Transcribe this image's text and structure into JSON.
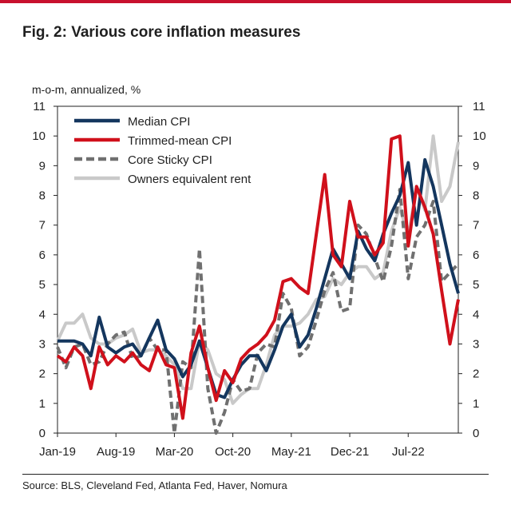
{
  "title": "Fig. 2: Various core inflation measures",
  "source": "Source: BLS, Cleveland Fed, Atlanta Fed, Haver, Nomura",
  "colors": {
    "accent": "#c8102e",
    "median": "#14365e",
    "trimmed": "#d0101b",
    "sticky": "#707070",
    "oer": "#c9c9c9"
  },
  "chart_data": {
    "type": "line",
    "ylabel": "m-o-m, annualized, %",
    "ylim": [
      0,
      11
    ],
    "yticks": [
      "0",
      "1",
      "2",
      "3",
      "4",
      "5",
      "6",
      "7",
      "8",
      "9",
      "10",
      "11"
    ],
    "xlim": [
      0,
      48
    ],
    "xticks": [
      {
        "label": "Jan-19",
        "x": 0
      },
      {
        "label": "Aug-19",
        "x": 7
      },
      {
        "label": "Mar-20",
        "x": 14
      },
      {
        "label": "Oct-20",
        "x": 21
      },
      {
        "label": "May-21",
        "x": 28
      },
      {
        "label": "Dec-21",
        "x": 35
      },
      {
        "label": "Jul-22",
        "x": 42
      }
    ],
    "legend_position": "top-left",
    "series": [
      {
        "name": "Median CPI",
        "color": "#14365e",
        "dash": "solid",
        "width": 4,
        "values": [
          3.1,
          3.1,
          3.1,
          3.0,
          2.6,
          3.9,
          2.9,
          2.7,
          2.9,
          3.0,
          2.6,
          3.2,
          3.8,
          2.8,
          2.5,
          1.9,
          2.3,
          3.1,
          2.2,
          1.3,
          1.2,
          1.8,
          2.3,
          2.6,
          2.6,
          2.1,
          2.8,
          3.6,
          4.0,
          2.9,
          3.3,
          4.2,
          5.2,
          6.2,
          5.7,
          5.2,
          6.8,
          6.2,
          5.8,
          6.7,
          7.4,
          8.0,
          9.1,
          7.0,
          9.2,
          8.3,
          7.0,
          5.7,
          4.7
        ]
      },
      {
        "name": "Trimmed-mean CPI",
        "color": "#d0101b",
        "dash": "solid",
        "width": 4,
        "values": [
          2.6,
          2.4,
          2.9,
          2.6,
          1.5,
          2.9,
          2.3,
          2.6,
          2.4,
          2.7,
          2.3,
          2.1,
          2.9,
          2.3,
          2.2,
          0.5,
          2.7,
          3.6,
          2.2,
          1.1,
          2.1,
          1.7,
          2.5,
          2.8,
          3.0,
          3.3,
          3.8,
          5.1,
          5.2,
          4.9,
          4.7,
          6.7,
          8.7,
          6.0,
          5.6,
          7.8,
          6.6,
          6.6,
          6.0,
          6.4,
          9.9,
          10.0,
          6.3,
          8.3,
          7.6,
          6.7,
          4.8,
          3.0,
          4.5
        ]
      },
      {
        "name": "Core Sticky CPI",
        "color": "#707070",
        "dash": "dashed",
        "width": 4,
        "values": [
          2.9,
          2.2,
          2.9,
          3.0,
          2.3,
          2.4,
          3.0,
          3.3,
          3.4,
          2.5,
          2.6,
          3.2,
          2.8,
          2.8,
          0.0,
          2.4,
          2.2,
          6.2,
          1.5,
          0.0,
          0.7,
          1.8,
          1.4,
          1.5,
          2.7,
          3.0,
          2.9,
          4.7,
          4.2,
          2.6,
          2.9,
          3.8,
          4.8,
          5.4,
          4.1,
          4.2,
          7.0,
          6.7,
          5.9,
          5.1,
          6.3,
          8.2,
          5.2,
          6.6,
          7.0,
          7.8,
          5.1,
          5.4,
          5.7
        ]
      },
      {
        "name": "Owners equivalent rent",
        "color": "#c9c9c9",
        "dash": "solid",
        "width": 4,
        "values": [
          3.1,
          3.7,
          3.7,
          4.0,
          3.2,
          3.0,
          3.0,
          3.2,
          3.3,
          3.5,
          2.7,
          2.8,
          2.8,
          2.6,
          2.3,
          1.5,
          1.5,
          3.1,
          2.8,
          2.0,
          1.8,
          1.0,
          1.3,
          1.5,
          1.5,
          2.3,
          3.3,
          3.6,
          3.6,
          3.7,
          4.0,
          4.5,
          4.6,
          5.2,
          5.0,
          5.4,
          5.6,
          5.6,
          5.2,
          5.4,
          6.8,
          7.6,
          6.6,
          8.3,
          7.5,
          10.0,
          7.8,
          8.3,
          9.8
        ]
      }
    ]
  }
}
